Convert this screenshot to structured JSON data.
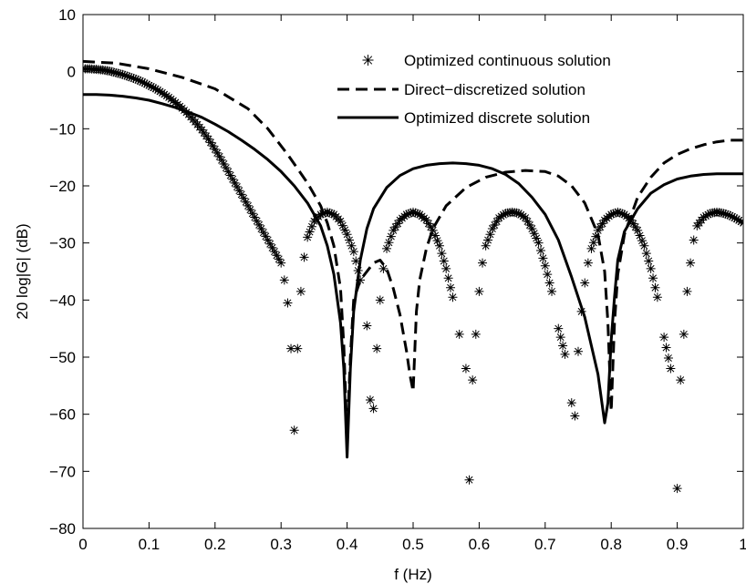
{
  "chart_data": {
    "type": "line",
    "xlabel": "f (Hz)",
    "ylabel": "20 log|G| (dB)",
    "xlim": [
      0,
      1
    ],
    "ylim": [
      -80,
      10
    ],
    "xticks": [
      0,
      0.1,
      0.2,
      0.3,
      0.4,
      0.5,
      0.6,
      0.7,
      0.8,
      0.9,
      1
    ],
    "xtick_labels": [
      "0",
      "0.1",
      "0.2",
      "0.3",
      "0.4",
      "0.5",
      "0.6",
      "0.7",
      "0.8",
      "0.9",
      "1"
    ],
    "yticks": [
      10,
      0,
      -10,
      -20,
      -30,
      -40,
      -50,
      -60,
      -70,
      -80
    ],
    "ytick_labels": [
      "10",
      "0",
      "−10",
      "−20",
      "−30",
      "−40",
      "−50",
      "−60",
      "−70",
      "−80"
    ],
    "grid": false,
    "legend_position": "top-right",
    "series": [
      {
        "name": "Optimized continuous solution",
        "style": "asterisk-markers",
        "color": "#000000",
        "x": [
          0,
          0.01,
          0.02,
          0.03,
          0.04,
          0.05,
          0.06,
          0.07,
          0.08,
          0.09,
          0.1,
          0.11,
          0.12,
          0.13,
          0.14,
          0.15,
          0.16,
          0.17,
          0.18,
          0.19,
          0.2,
          0.21,
          0.22,
          0.23,
          0.24,
          0.25,
          0.26,
          0.27,
          0.28,
          0.29,
          0.3,
          0.305,
          0.31,
          0.315,
          0.32,
          0.325,
          0.33,
          0.335,
          0.34,
          0.35,
          0.36,
          0.37,
          0.38,
          0.39,
          0.4,
          0.41,
          0.42,
          0.43,
          0.435,
          0.44,
          0.445,
          0.45,
          0.455,
          0.46,
          0.47,
          0.48,
          0.49,
          0.5,
          0.51,
          0.52,
          0.53,
          0.54,
          0.55,
          0.56,
          0.57,
          0.58,
          0.585,
          0.59,
          0.595,
          0.6,
          0.605,
          0.61,
          0.62,
          0.63,
          0.64,
          0.65,
          0.66,
          0.67,
          0.68,
          0.69,
          0.7,
          0.71,
          0.72,
          0.73,
          0.74,
          0.745,
          0.75,
          0.755,
          0.76,
          0.765,
          0.77,
          0.78,
          0.79,
          0.8,
          0.81,
          0.82,
          0.83,
          0.84,
          0.85,
          0.86,
          0.87,
          0.88,
          0.89,
          0.9,
          0.905,
          0.91,
          0.915,
          0.92,
          0.925,
          0.93,
          0.94,
          0.95,
          0.96,
          0.97,
          0.98,
          0.99,
          1.0
        ],
        "y": [
          0.5,
          0.5,
          0.4,
          0.3,
          0.1,
          -0.2,
          -0.5,
          -0.9,
          -1.3,
          -1.8,
          -2.4,
          -3.0,
          -3.7,
          -4.5,
          -5.4,
          -6.4,
          -7.5,
          -8.8,
          -10.2,
          -11.8,
          -13.6,
          -15.5,
          -17.5,
          -19.5,
          -21.5,
          -23.5,
          -25.5,
          -27.5,
          -29.5,
          -31.5,
          -33.5,
          -36.5,
          -40.5,
          -48.5,
          -62.8,
          -48.5,
          -38.5,
          -32.5,
          -29.0,
          -26.2,
          -25.0,
          -24.6,
          -25.0,
          -26.2,
          -28.5,
          -31.5,
          -36.5,
          -44.5,
          -57.5,
          -59.0,
          -48.5,
          -40.0,
          -34.5,
          -31.0,
          -27.8,
          -26.0,
          -25.0,
          -24.6,
          -25.0,
          -26.0,
          -27.8,
          -30.5,
          -34.5,
          -39.5,
          -46.0,
          -52.0,
          -71.5,
          -54.0,
          -46.0,
          -38.5,
          -33.5,
          -30.5,
          -27.5,
          -25.6,
          -24.8,
          -24.6,
          -24.8,
          -25.6,
          -27.5,
          -30.0,
          -34.0,
          -38.5,
          -45.0,
          -49.5,
          -58.0,
          -60.3,
          -49.0,
          -42.0,
          -37.0,
          -33.5,
          -31.0,
          -27.8,
          -26.0,
          -25.0,
          -24.6,
          -25.0,
          -26.0,
          -27.8,
          -30.5,
          -34.5,
          -39.5,
          -46.5,
          -52.0,
          -73.0,
          -54.0,
          -46.0,
          -38.5,
          -33.5,
          -29.5,
          -27.0,
          -25.5,
          -24.8,
          -24.6,
          -24.8,
          -25.2,
          -25.8,
          -26.5
        ]
      },
      {
        "name": "Direct−discretized solution",
        "style": "dashed",
        "color": "#000000",
        "x": [
          0,
          0.05,
          0.1,
          0.15,
          0.2,
          0.25,
          0.28,
          0.31,
          0.34,
          0.36,
          0.37,
          0.38,
          0.39,
          0.395,
          0.4,
          0.405,
          0.41,
          0.42,
          0.43,
          0.44,
          0.45,
          0.46,
          0.47,
          0.48,
          0.49,
          0.495,
          0.5,
          0.505,
          0.51,
          0.52,
          0.53,
          0.55,
          0.58,
          0.61,
          0.64,
          0.67,
          0.7,
          0.72,
          0.74,
          0.76,
          0.78,
          0.79,
          0.795,
          0.8,
          0.805,
          0.81,
          0.82,
          0.84,
          0.86,
          0.88,
          0.9,
          0.92,
          0.94,
          0.96,
          0.98,
          1.0
        ],
        "y": [
          1.8,
          1.5,
          0.5,
          -1.0,
          -3.0,
          -6.5,
          -10.0,
          -14.5,
          -19.5,
          -23.5,
          -26.5,
          -30.5,
          -38.0,
          -48.0,
          -64.0,
          -50.0,
          -40.0,
          -36.5,
          -35.0,
          -33.5,
          -33.0,
          -34.5,
          -38.0,
          -42.5,
          -49.0,
          -53.0,
          -56.0,
          -42.0,
          -36.5,
          -31.0,
          -27.5,
          -23.5,
          -20.3,
          -18.5,
          -17.6,
          -17.3,
          -17.5,
          -18.3,
          -20.0,
          -23.0,
          -28.5,
          -35.0,
          -44.0,
          -59.5,
          -44.0,
          -35.5,
          -28.5,
          -22.0,
          -18.5,
          -16.0,
          -14.5,
          -13.5,
          -12.8,
          -12.3,
          -12.0,
          -12.0
        ]
      },
      {
        "name": "Optimized discrete solution",
        "style": "solid",
        "color": "#000000",
        "x": [
          0,
          0.02,
          0.04,
          0.06,
          0.08,
          0.1,
          0.12,
          0.14,
          0.16,
          0.18,
          0.2,
          0.22,
          0.24,
          0.26,
          0.28,
          0.3,
          0.32,
          0.34,
          0.36,
          0.37,
          0.38,
          0.39,
          0.395,
          0.4,
          0.405,
          0.41,
          0.42,
          0.43,
          0.44,
          0.46,
          0.48,
          0.5,
          0.52,
          0.54,
          0.56,
          0.58,
          0.6,
          0.62,
          0.64,
          0.66,
          0.68,
          0.7,
          0.72,
          0.74,
          0.76,
          0.78,
          0.79,
          0.795,
          0.8,
          0.805,
          0.81,
          0.82,
          0.84,
          0.86,
          0.88,
          0.9,
          0.92,
          0.94,
          0.96,
          0.98,
          1.0
        ],
        "y": [
          -4.0,
          -4.0,
          -4.1,
          -4.3,
          -4.6,
          -5.0,
          -5.6,
          -6.3,
          -7.1,
          -8.0,
          -9.2,
          -10.5,
          -12.0,
          -13.6,
          -15.4,
          -17.5,
          -20.0,
          -23.0,
          -27.0,
          -30.5,
          -35.5,
          -44.0,
          -52.0,
          -67.5,
          -52.0,
          -42.0,
          -33.0,
          -27.5,
          -24.0,
          -20.3,
          -18.2,
          -17.0,
          -16.4,
          -16.1,
          -16.0,
          -16.1,
          -16.4,
          -17.0,
          -18.0,
          -19.6,
          -22.0,
          -25.0,
          -29.5,
          -36.0,
          -43.0,
          -53.0,
          -61.5,
          -58.0,
          -47.0,
          -39.5,
          -33.0,
          -28.0,
          -24.0,
          -21.3,
          -19.8,
          -18.8,
          -18.3,
          -18.0,
          -17.9,
          -17.9,
          -17.9
        ]
      }
    ]
  }
}
